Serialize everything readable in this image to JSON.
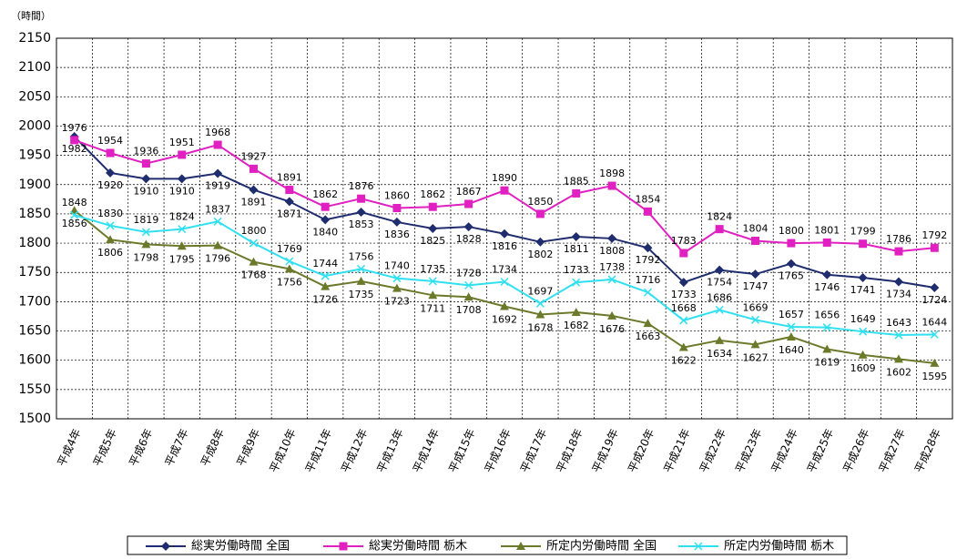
{
  "chart_data": {
    "type": "line",
    "y_axis_label": "（時間）",
    "categories": [
      "平成4年",
      "平成5年",
      "平成6年",
      "平成7年",
      "平成8年",
      "平成9年",
      "平成10年",
      "平成11年",
      "平成12年",
      "平成13年",
      "平成14年",
      "平成15年",
      "平成16年",
      "平成17年",
      "平成18年",
      "平成19年",
      "平成20年",
      "平成21年",
      "平成22年",
      "平成23年",
      "平成24年",
      "平成25年",
      "平成26年",
      "平成27年",
      "平成28年"
    ],
    "series": [
      {
        "name": "総実労働時間 全国",
        "color": "#1f2d6e",
        "marker": "diamond",
        "values": [
          1982,
          1920,
          1910,
          1910,
          1919,
          1891,
          1871,
          1840,
          1853,
          1836,
          1825,
          1828,
          1816,
          1802,
          1811,
          1808,
          1792,
          1733,
          1754,
          1747,
          1765,
          1746,
          1741,
          1734,
          1724
        ]
      },
      {
        "name": "総実労働時間 栃木",
        "color": "#e020c0",
        "marker": "square",
        "values": [
          1976,
          1954,
          1936,
          1951,
          1968,
          1927,
          1891,
          1862,
          1876,
          1860,
          1862,
          1867,
          1890,
          1850,
          1885,
          1898,
          1854,
          1783,
          1824,
          1804,
          1800,
          1801,
          1799,
          1786,
          1792
        ]
      },
      {
        "name": "所定内労働時間 全国",
        "color": "#6b7a2a",
        "marker": "triangle",
        "values": [
          1856,
          1806,
          1798,
          1795,
          1796,
          1768,
          1756,
          1726,
          1735,
          1723,
          1711,
          1708,
          1692,
          1678,
          1682,
          1676,
          1663,
          1622,
          1634,
          1627,
          1640,
          1619,
          1609,
          1602,
          1595
        ]
      },
      {
        "name": "所定内労働時間 栃木",
        "color": "#30e0f0",
        "marker": "x",
        "values": [
          1848,
          1830,
          1819,
          1824,
          1837,
          1800,
          1769,
          1744,
          1756,
          1740,
          1735,
          1728,
          1734,
          1697,
          1733,
          1738,
          1716,
          1668,
          1686,
          1669,
          1657,
          1656,
          1649,
          1643,
          1644
        ]
      }
    ],
    "ylim": [
      1500,
      2150
    ],
    "yticks": [
      1500,
      1550,
      1600,
      1650,
      1700,
      1750,
      1800,
      1850,
      1900,
      1950,
      2000,
      2050,
      2100,
      2150
    ],
    "grid": true,
    "legend": "bottom"
  }
}
